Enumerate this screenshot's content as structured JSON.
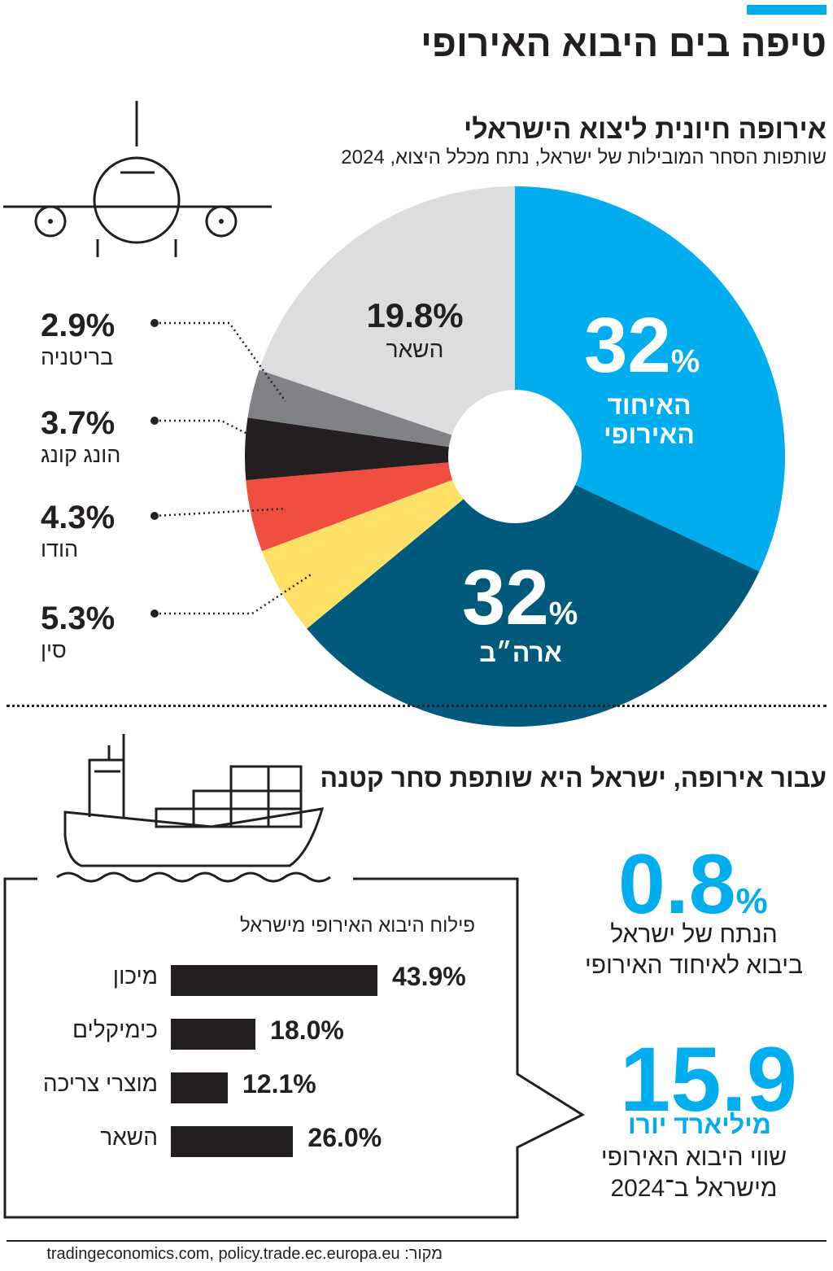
{
  "header": {
    "title": "טיפה בים היבוא האירופי"
  },
  "colors": {
    "accent": "#00aeef",
    "eu": "#00aeef",
    "usa": "#005a7c",
    "china": "#ffe066",
    "india": "#f04e40",
    "hongkong": "#231f20",
    "uk": "#808285",
    "rest": "#dcddde",
    "text": "#231f20"
  },
  "icons": [
    "airplane-icon",
    "cargo-ship-icon"
  ],
  "pie_section": {
    "title": "אירופה חיונית ליצוא הישראלי",
    "subtitle": "שותפות הסחר המובילות של ישראל, נתח מכלל היצוא, 2024"
  },
  "bars_section": {
    "title": "פילוח היבוא האירופי מישראל"
  },
  "trade_section": {
    "title": "עבור אירופה, ישראל היא שותפת סחר קטנה",
    "share_value": "0.8",
    "share_unit": "%",
    "share_desc_line1": "הנתח של ישראל",
    "share_desc_line2": "ביבוא לאיחוד האירופי",
    "import_value": "15.9",
    "import_unit": "מיליארד יורו",
    "import_desc_line1": "שווי היבוא האירופי",
    "import_desc_line2": "מישראל ב־2024"
  },
  "chart_data": [
    {
      "type": "pie",
      "title": "אירופה חיונית ליצוא הישראלי",
      "subtitle": "שותפות הסחר המובילות של ישראל, נתח מכלל היצוא, 2024",
      "donut": true,
      "slices": [
        {
          "key": "eu",
          "name_line1": "האיחוד",
          "name_line2": "האירופי",
          "value": 32,
          "value_label": "32",
          "unit": "%",
          "color": "#00aeef"
        },
        {
          "key": "usa",
          "name_line1": "ארה״ב",
          "name_line2": "",
          "value": 32,
          "value_label": "32",
          "unit": "%",
          "color": "#005a7c"
        },
        {
          "key": "china",
          "name_line1": "סין",
          "name_line2": "",
          "value": 5.3,
          "value_label": "5.3%",
          "unit": "",
          "color": "#ffe066"
        },
        {
          "key": "india",
          "name_line1": "הודו",
          "name_line2": "",
          "value": 4.3,
          "value_label": "4.3%",
          "unit": "",
          "color": "#f04e40"
        },
        {
          "key": "hongkong",
          "name_line1": "הונג קונג",
          "name_line2": "",
          "value": 3.7,
          "value_label": "3.7%",
          "unit": "",
          "color": "#231f20"
        },
        {
          "key": "uk",
          "name_line1": "בריטניה",
          "name_line2": "",
          "value": 2.9,
          "value_label": "2.9%",
          "unit": "",
          "color": "#808285"
        },
        {
          "key": "rest",
          "name_line1": "השאר",
          "name_line2": "",
          "value": 19.8,
          "value_label": "19.8%",
          "unit": "",
          "color": "#dcddde"
        }
      ]
    },
    {
      "type": "bar",
      "orientation": "horizontal",
      "title": "פילוח היבוא האירופי מישראל",
      "categories": [
        "מיכון",
        "כימיקלים",
        "מוצרי צריכה",
        "השאר"
      ],
      "values": [
        43.9,
        18.0,
        12.1,
        26.0
      ],
      "value_labels": [
        "43.9%",
        "18.0%",
        "12.1%",
        "26.0%"
      ],
      "xlim": [
        0,
        43.9
      ]
    }
  ],
  "footer": {
    "source": "מקור: tradingeconomics.com, policy.trade.ec.europa.eu"
  }
}
